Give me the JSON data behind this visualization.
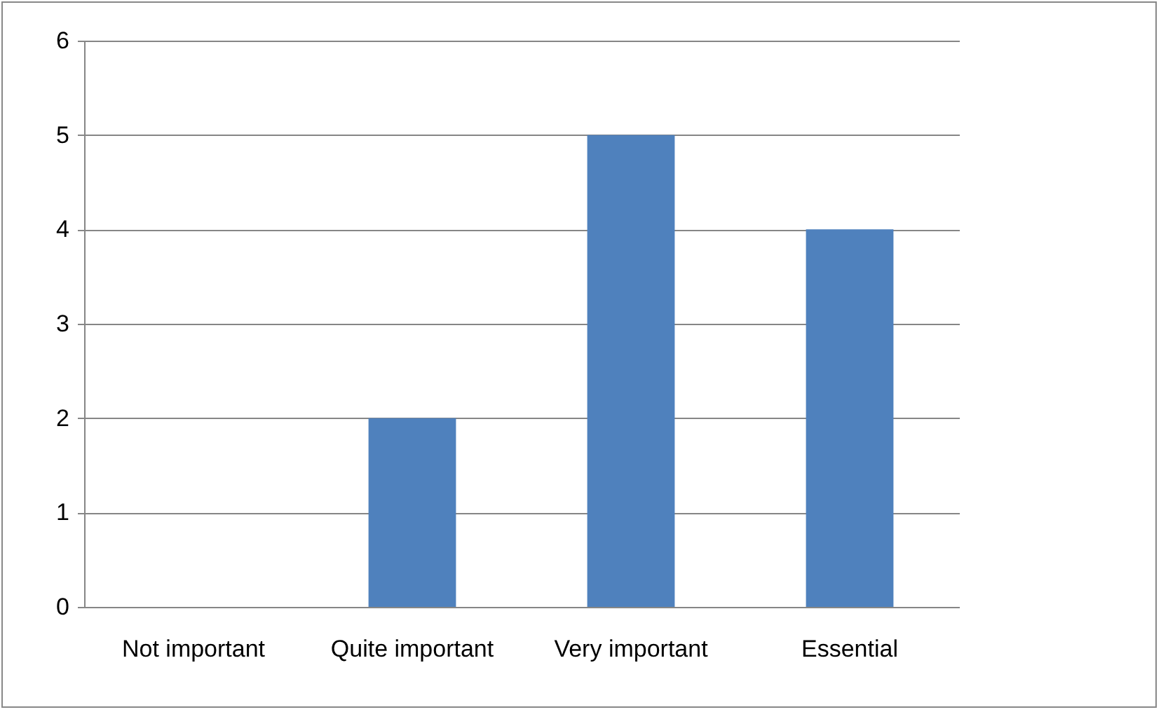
{
  "chart_data": {
    "type": "bar",
    "categories": [
      "Not important",
      "Quite important",
      "Very important",
      "Essential"
    ],
    "values": [
      0,
      2,
      5,
      4
    ],
    "color": "#4f81bd",
    "ylim": [
      0,
      6
    ],
    "yticks": [
      0,
      1,
      2,
      3,
      4,
      5,
      6
    ],
    "grid": "y"
  }
}
